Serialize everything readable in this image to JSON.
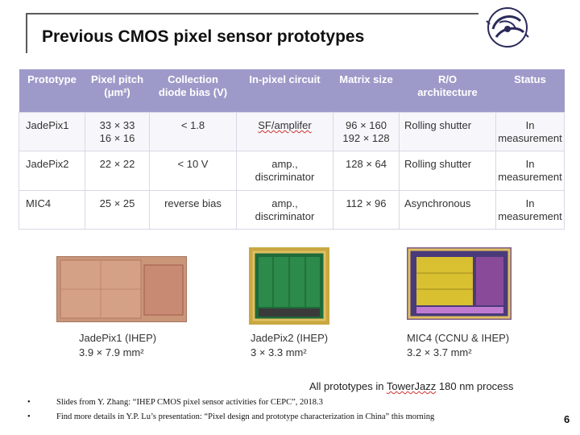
{
  "slide": {
    "title": "Previous CMOS pixel sensor prototypes",
    "page_number": "6"
  },
  "table": {
    "headers": [
      {
        "line1": "Prototype",
        "line2": ""
      },
      {
        "line1": "Pixel pitch",
        "line2": "(μm²)"
      },
      {
        "line1": "Collection",
        "line2": "diode bias (V)"
      },
      {
        "line1": "In-pixel circuit",
        "line2": ""
      },
      {
        "line1": "Matrix size",
        "line2": ""
      },
      {
        "line1": "R/O",
        "line2": "architecture"
      },
      {
        "line1": "Status",
        "line2": ""
      }
    ],
    "rows": [
      {
        "prototype": "JadePix1",
        "pitch_1": "33 × 33",
        "pitch_2": "16 × 16",
        "bias": "< 1.8",
        "circuit_1": "SF/amplifer",
        "circuit_2": "",
        "matrix_1": "96 × 160",
        "matrix_2": "192 × 128",
        "readout": "Rolling shutter",
        "status_1": "In",
        "status_2": "measurement"
      },
      {
        "prototype": "JadePix2",
        "pitch_1": "22 × 22",
        "pitch_2": "",
        "bias": "< 10 V",
        "circuit_1": "amp.,",
        "circuit_2": "discriminator",
        "matrix_1": "128 × 64",
        "matrix_2": "",
        "readout": "Rolling shutter",
        "status_1": "In",
        "status_2": "measurement"
      },
      {
        "prototype": "MIC4",
        "pitch_1": "25 × 25",
        "pitch_2": "",
        "bias": "reverse bias",
        "circuit_1": "amp.,",
        "circuit_2": "discriminator",
        "matrix_1": "112 × 96",
        "matrix_2": "",
        "readout": "Asynchronous",
        "status_1": "In",
        "status_2": "measurement"
      }
    ]
  },
  "chips": [
    {
      "name": "JadePix1 (IHEP)",
      "size": "3.9 × 7.9 mm²"
    },
    {
      "name": "JadePix2 (IHEP)",
      "size": "3 × 3.3 mm²"
    },
    {
      "name": "MIC4 (CCNU & IHEP)",
      "size": "3.2 × 3.7 mm²"
    }
  ],
  "process_note": {
    "prefix": "All prototypes in ",
    "foundry": "TowerJazz",
    "suffix": " 180 nm process"
  },
  "notes": [
    {
      "bullet": "•",
      "text": "Slides from Y. Zhang: “IHEP CMOS pixel sensor activities for CEPC”, 2018.3"
    },
    {
      "bullet": "•",
      "text": "Find more details in Y.P. Lu’s presentation: “Pixel design and prototype characterization in China” this morning"
    }
  ],
  "colors": {
    "header_bg": "#9d9ac9",
    "title_rule": "#5a5a5a"
  }
}
